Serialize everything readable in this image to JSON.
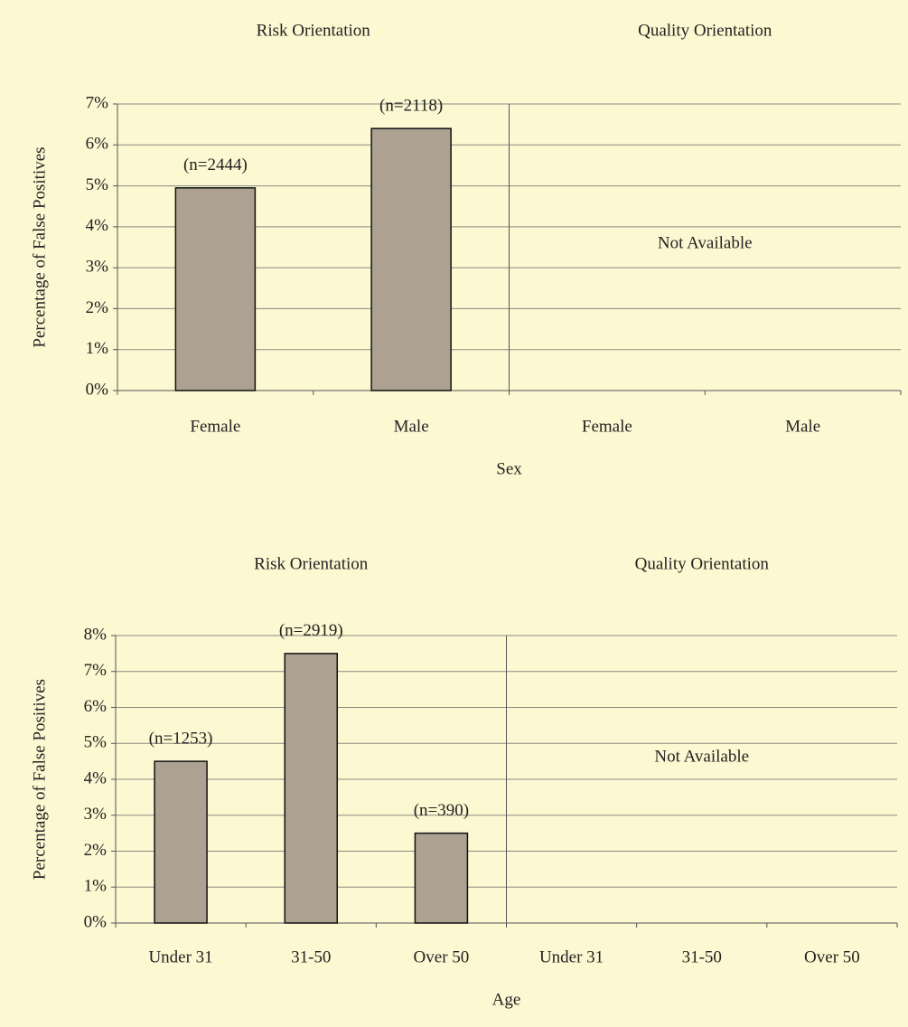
{
  "chart_data": [
    {
      "type": "bar",
      "group_titles": [
        "Risk Orientation",
        "Quality Orientation"
      ],
      "categories": [
        "Female",
        "Male",
        "Female",
        "Male"
      ],
      "values": [
        4.95,
        6.4,
        null,
        null
      ],
      "annotations": [
        "(n=2444)",
        "(n=2118)",
        null,
        null
      ],
      "note": "Not Available",
      "x_label": "Sex",
      "y_label": "Percentage of False Positives",
      "color": "#ada191",
      "ylim": [
        0,
        7
      ],
      "yticks": [
        {
          "value": 0,
          "label": "0%"
        },
        {
          "value": 1,
          "label": "1%"
        },
        {
          "value": 2,
          "label": "2%"
        },
        {
          "value": 3,
          "label": "3%"
        },
        {
          "value": 4,
          "label": "4%"
        },
        {
          "value": 5,
          "label": "5%"
        },
        {
          "value": 6,
          "label": "6%"
        },
        {
          "value": 7,
          "label": "7%"
        }
      ],
      "grid": true
    },
    {
      "type": "bar",
      "group_titles": [
        "Risk Orientation",
        "Quality Orientation"
      ],
      "categories": [
        "Under 31",
        "31-50",
        "Over 50",
        "Under 31",
        "31-50",
        "Over 50"
      ],
      "values": [
        4.5,
        7.5,
        2.5,
        null,
        null,
        null
      ],
      "annotations": [
        "(n=1253)",
        "(n=2919)",
        "(n=390)",
        null,
        null,
        null
      ],
      "note": "Not Available",
      "x_label": "Age",
      "y_label": "Percentage of False Positives",
      "color": "#ada191",
      "ylim": [
        0,
        8
      ],
      "yticks": [
        {
          "value": 0,
          "label": "0%"
        },
        {
          "value": 1,
          "label": "1%"
        },
        {
          "value": 2,
          "label": "2%"
        },
        {
          "value": 3,
          "label": "3%"
        },
        {
          "value": 4,
          "label": "4%"
        },
        {
          "value": 5,
          "label": "5%"
        },
        {
          "value": 6,
          "label": "6%"
        },
        {
          "value": 7,
          "label": "7%"
        },
        {
          "value": 8,
          "label": "8%"
        }
      ],
      "grid": true
    }
  ]
}
